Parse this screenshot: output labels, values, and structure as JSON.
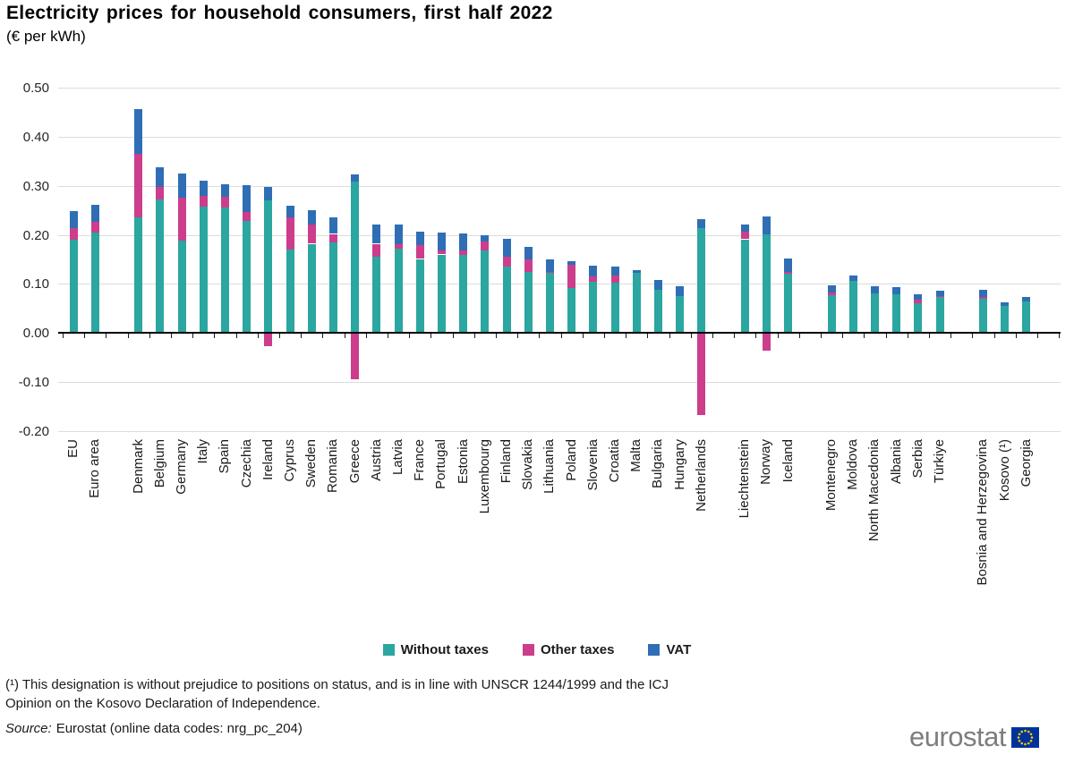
{
  "title": "Electricity prices for household consumers, first half 2022",
  "subtitle": "(€ per kWh)",
  "legend": {
    "items": [
      {
        "label": "Without taxes",
        "color": "#2BA6A0"
      },
      {
        "label": "Other taxes",
        "color": "#CC3D8C"
      },
      {
        "label": "VAT",
        "color": "#2F6EB5"
      }
    ]
  },
  "footnote": {
    "line1": "(¹) This designation is without prejudice to positions on status, and is in line with UNSCR 1244/1999 and the ICJ",
    "line2": "Opinion on the Kosovo Declaration of Independence."
  },
  "source": {
    "prefix": "Source:",
    "text": "Eurostat (online data codes: nrg_pc_204)"
  },
  "logo": {
    "text": "eurostat"
  },
  "chart_data": {
    "type": "bar",
    "stacked": true,
    "title": "Electricity prices for household consumers, first half 2022",
    "unit": "€ per kWh",
    "ylim": [
      -0.2,
      0.5
    ],
    "ytick_step": 0.1,
    "grid": "horizontal",
    "legend_position": "bottom",
    "series": [
      "Without taxes",
      "Other taxes",
      "VAT"
    ],
    "colors": {
      "Without taxes": "#2BA6A0",
      "Other taxes": "#CC3D8C",
      "VAT": "#2F6EB5"
    },
    "values_order": [
      "without_taxes",
      "other_taxes",
      "vat"
    ],
    "groups": [
      {
        "countries": [
          {
            "label": "EU",
            "values": [
              0.19,
              0.024,
              0.034
            ]
          },
          {
            "label": "Euro area",
            "values": [
              0.204,
              0.022,
              0.036
            ]
          }
        ]
      },
      {
        "countries": [
          {
            "label": "Denmark",
            "values": [
              0.236,
              0.129,
              0.091
            ]
          },
          {
            "label": "Belgium",
            "values": [
              0.272,
              0.026,
              0.039
            ]
          },
          {
            "label": "Germany",
            "values": [
              0.189,
              0.087,
              0.05
            ]
          },
          {
            "label": "Italy",
            "values": [
              0.258,
              0.021,
              0.031
            ]
          },
          {
            "label": "Spain",
            "values": [
              0.255,
              0.023,
              0.026
            ]
          },
          {
            "label": "Czechia",
            "values": [
              0.228,
              0.018,
              0.056
            ]
          },
          {
            "label": "Ireland",
            "values": [
              0.27,
              -0.026,
              0.028
            ]
          },
          {
            "label": "Cyprus",
            "values": [
              0.17,
              0.065,
              0.025
            ]
          },
          {
            "label": "Sweden",
            "values": [
              0.182,
              0.039,
              0.03
            ]
          },
          {
            "label": "Romania",
            "values": [
              0.184,
              0.018,
              0.033
            ]
          },
          {
            "label": "Greece",
            "values": [
              0.308,
              -0.095,
              0.015
            ]
          },
          {
            "label": "Austria",
            "values": [
              0.155,
              0.027,
              0.04
            ]
          },
          {
            "label": "Latvia",
            "values": [
              0.172,
              0.009,
              0.04
            ]
          },
          {
            "label": "France",
            "values": [
              0.151,
              0.028,
              0.027
            ]
          },
          {
            "label": "Portugal",
            "values": [
              0.16,
              0.009,
              0.035
            ]
          },
          {
            "label": "Estonia",
            "values": [
              0.159,
              0.009,
              0.035
            ]
          },
          {
            "label": "Luxembourg",
            "values": [
              0.168,
              0.018,
              0.014
            ]
          },
          {
            "label": "Finland",
            "values": [
              0.136,
              0.02,
              0.036
            ]
          },
          {
            "label": "Slovakia",
            "values": [
              0.125,
              0.025,
              0.026
            ]
          },
          {
            "label": "Lithuania",
            "values": [
              0.122,
              0.002,
              0.026
            ]
          },
          {
            "label": "Poland",
            "values": [
              0.091,
              0.048,
              0.008
            ]
          },
          {
            "label": "Slovenia",
            "values": [
              0.104,
              0.011,
              0.023
            ]
          },
          {
            "label": "Croatia",
            "values": [
              0.102,
              0.015,
              0.018
            ]
          },
          {
            "label": "Malta",
            "values": [
              0.122,
              0.0,
              0.006
            ]
          },
          {
            "label": "Bulgaria",
            "values": [
              0.089,
              0.0,
              0.02
            ]
          },
          {
            "label": "Hungary",
            "values": [
              0.075,
              0.0,
              0.02
            ]
          },
          {
            "label": "Netherlands",
            "values": [
              0.214,
              -0.168,
              0.018
            ]
          }
        ]
      },
      {
        "countries": [
          {
            "label": "Liechtenstein",
            "values": [
              0.191,
              0.015,
              0.016
            ]
          },
          {
            "label": "Norway",
            "values": [
              0.201,
              -0.036,
              0.036
            ]
          },
          {
            "label": "Iceland",
            "values": [
              0.121,
              0.004,
              0.027
            ]
          }
        ]
      },
      {
        "countries": [
          {
            "label": "Montenegro",
            "values": [
              0.077,
              0.006,
              0.014
            ]
          },
          {
            "label": "Moldova",
            "values": [
              0.107,
              0.0,
              0.01
            ]
          },
          {
            "label": "North Macedonia",
            "values": [
              0.081,
              0.0,
              0.014
            ]
          },
          {
            "label": "Albania",
            "values": [
              0.079,
              0.0,
              0.014
            ]
          },
          {
            "label": "Serbia",
            "values": [
              0.06,
              0.009,
              0.01
            ]
          },
          {
            "label": "Türkiye",
            "values": [
              0.073,
              0.003,
              0.01
            ]
          }
        ]
      },
      {
        "countries": [
          {
            "label": "Bosnia and Herzegovina",
            "values": [
              0.069,
              0.005,
              0.014
            ]
          },
          {
            "label": "Kosovo (¹)",
            "values": [
              0.055,
              0.0,
              0.007
            ]
          },
          {
            "label": "Georgia",
            "values": [
              0.065,
              0.0,
              0.009
            ]
          }
        ]
      }
    ]
  }
}
